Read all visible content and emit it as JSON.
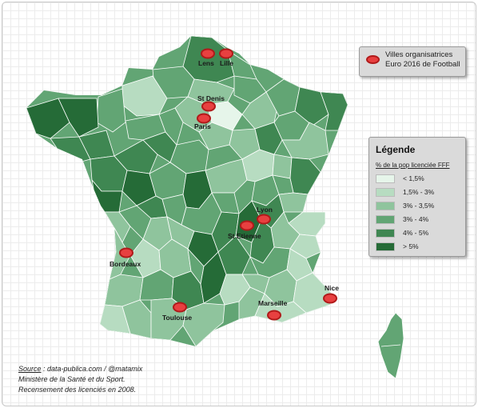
{
  "host_legend": {
    "line1": "Villes organisatrices",
    "line2": "Euro 2016 de Football"
  },
  "legend": {
    "title": "Légende",
    "subtitle": "% de la pop licenciée FFF",
    "classes": [
      {
        "label": "< 1,5%",
        "color": "#e6f5ea"
      },
      {
        "label": "1,5% - 3%",
        "color": "#b7dcc1"
      },
      {
        "label": "3% - 3,5%",
        "color": "#8fc49d"
      },
      {
        "label": "3% - 4%",
        "color": "#62a574"
      },
      {
        "label": "4% - 5%",
        "color": "#3f8752"
      },
      {
        "label": "> 5%",
        "color": "#256b37"
      }
    ]
  },
  "cities": [
    {
      "name": "Lens"
    },
    {
      "name": "Lille"
    },
    {
      "name": "St Denis"
    },
    {
      "name": "Paris"
    },
    {
      "name": "Lyon"
    },
    {
      "name": "St Etienne"
    },
    {
      "name": "Bordeaux"
    },
    {
      "name": "Nice"
    },
    {
      "name": "Marseille"
    },
    {
      "name": "Toulouse"
    }
  ],
  "source": {
    "label": "Source",
    "text": " : data-publica.com / @matamix",
    "line2": "Ministère de la Santé et du Sport.",
    "line3": "Recensement des licenciés en 2008."
  }
}
